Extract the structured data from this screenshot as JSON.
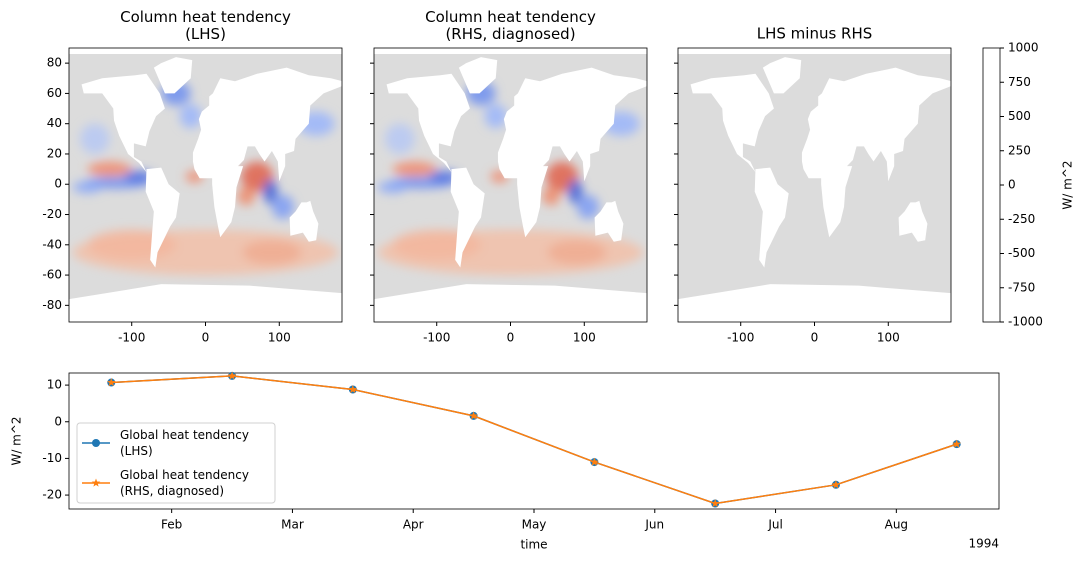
{
  "chart_data": [
    {
      "type": "map",
      "title": "Column heat tendency\n(LHS)",
      "xlim": [
        -185,
        185
      ],
      "ylim": [
        -91,
        90
      ],
      "xticks": [
        -100,
        0,
        100
      ],
      "yticks": [
        -80,
        -60,
        -40,
        -20,
        0,
        20,
        40,
        60,
        80
      ],
      "show_ytick_labels": true,
      "pattern": "anomaly"
    },
    {
      "type": "map",
      "title": "Column heat tendency\n(RHS, diagnosed)",
      "xlim": [
        -185,
        185
      ],
      "ylim": [
        -91,
        90
      ],
      "xticks": [
        -100,
        0,
        100
      ],
      "yticks": [
        -80,
        -60,
        -40,
        -20,
        0,
        20,
        40,
        60,
        80
      ],
      "show_ytick_labels": false,
      "pattern": "anomaly"
    },
    {
      "type": "map",
      "title": "LHS minus RHS",
      "xlim": [
        -185,
        185
      ],
      "ylim": [
        -91,
        90
      ],
      "xticks": [
        -100,
        0,
        100
      ],
      "yticks": [
        -80,
        -60,
        -40,
        -20,
        0,
        20,
        40,
        60,
        80
      ],
      "show_ytick_labels": false,
      "pattern": "zero"
    },
    {
      "type": "colorbar",
      "colormap": "coolwarm",
      "clim": [
        -1000,
        1000
      ],
      "ticks": [
        -1000,
        -750,
        -500,
        -250,
        0,
        250,
        500,
        750,
        1000
      ],
      "label": "W/ m^2"
    },
    {
      "type": "line",
      "x": [
        "1994-01",
        "1994-02",
        "1994-03",
        "1994-04",
        "1994-05",
        "1994-06",
        "1994-07",
        "1994-08"
      ],
      "xticks": [
        {
          "value": "1994-02",
          "label": "Feb"
        },
        {
          "value": "1994-03",
          "label": "Mar"
        },
        {
          "value": "1994-04",
          "label": "Apr"
        },
        {
          "value": "1994-05",
          "label": "May"
        },
        {
          "value": "1994-06",
          "label": "Jun"
        },
        {
          "value": "1994-07",
          "label": "Jul"
        },
        {
          "value": "1994-08",
          "label": "Aug"
        }
      ],
      "x_offset_label": "1994",
      "xlabel": "time",
      "ylabel": "W/ m^2",
      "ylim": [
        -23.8,
        13.3
      ],
      "yticks": [
        -20,
        -10,
        0,
        10
      ],
      "legend": "lower left",
      "series": [
        {
          "name": "Global heat tendency\n(LHS)",
          "color": "#1f77b4",
          "marker": "circle",
          "values": [
            10.7,
            12.5,
            8.8,
            1.6,
            -11,
            -22.3,
            -17.2,
            -6.1
          ]
        },
        {
          "name": "Global heat tendency\n(RHS, diagnosed)",
          "color": "#ff7f0e",
          "marker": "star",
          "values": [
            10.7,
            12.5,
            8.8,
            1.6,
            -11,
            -22.3,
            -17.2,
            -6.1
          ]
        }
      ]
    }
  ]
}
